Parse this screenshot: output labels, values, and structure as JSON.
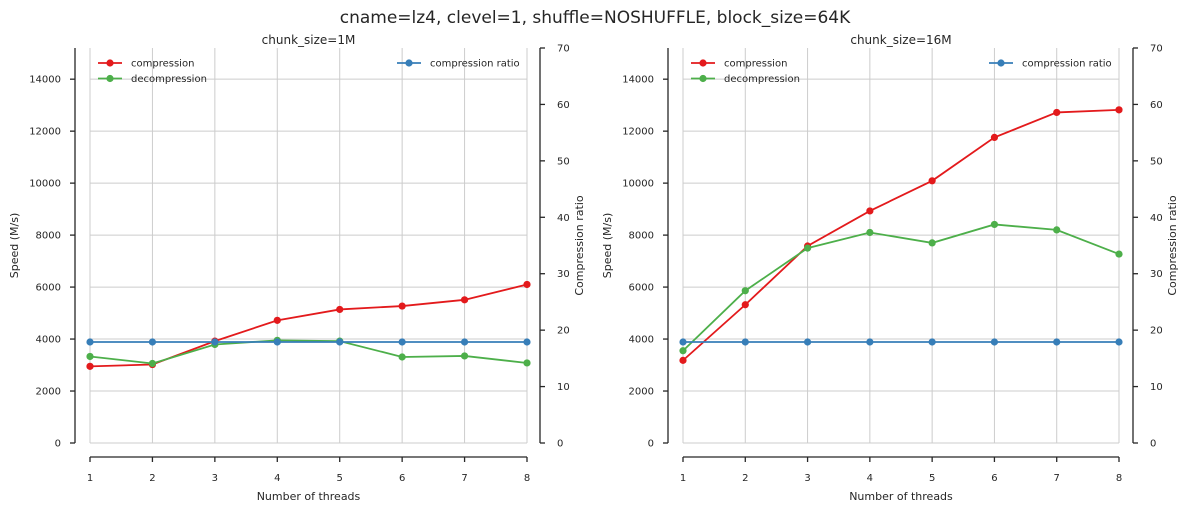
{
  "suptitle": "cname=lz4, clevel=1, shuffle=NOSHUFFLE, block_size=64K",
  "colors": {
    "compression": "#e31a1c",
    "decompression": "#4daf4a",
    "ratio": "#377eb8"
  },
  "chart_data": [
    {
      "type": "line",
      "title": "chunk_size=1M",
      "xlabel": "Number of threads",
      "ylabel": "Speed (M/s)",
      "y2label": "Compression ratio",
      "x": [
        1,
        2,
        3,
        4,
        5,
        6,
        7,
        8
      ],
      "xticks": [
        "1",
        "2",
        "3",
        "4",
        "5",
        "6",
        "7",
        "8"
      ],
      "ylim": [
        0,
        15200
      ],
      "yticks": [
        "0",
        "2000",
        "4000",
        "6000",
        "8000",
        "10000",
        "12000",
        "14000"
      ],
      "y2lim": [
        0,
        70
      ],
      "y2ticks": [
        "0",
        "10",
        "20",
        "30",
        "40",
        "50",
        "60",
        "70"
      ],
      "grid": true,
      "legend_left": "top-left",
      "legend_right": "top-right",
      "series": [
        {
          "name": "compression",
          "axis": "left",
          "color": "#e31a1c",
          "values": [
            2950,
            3020,
            3920,
            4720,
            5140,
            5270,
            5510,
            6100
          ]
        },
        {
          "name": "decompression",
          "axis": "left",
          "color": "#4daf4a",
          "values": [
            3330,
            3060,
            3790,
            3950,
            3920,
            3310,
            3350,
            3080
          ]
        },
        {
          "name": "compression ratio",
          "axis": "right",
          "color": "#377eb8",
          "values": [
            17.9,
            17.9,
            17.9,
            17.9,
            17.9,
            17.9,
            17.9,
            17.9
          ]
        }
      ]
    },
    {
      "type": "line",
      "title": "chunk_size=16M",
      "xlabel": "Number of threads",
      "ylabel": "Speed (M/s)",
      "y2label": "Compression ratio",
      "x": [
        1,
        2,
        3,
        4,
        5,
        6,
        7,
        8
      ],
      "xticks": [
        "1",
        "2",
        "3",
        "4",
        "5",
        "6",
        "7",
        "8"
      ],
      "ylim": [
        0,
        15200
      ],
      "yticks": [
        "0",
        "2000",
        "4000",
        "6000",
        "8000",
        "10000",
        "12000",
        "14000"
      ],
      "y2lim": [
        0,
        70
      ],
      "y2ticks": [
        "0",
        "10",
        "20",
        "30",
        "40",
        "50",
        "60",
        "70"
      ],
      "grid": true,
      "legend_left": "top-left",
      "legend_right": "top-right",
      "series": [
        {
          "name": "compression",
          "axis": "left",
          "color": "#e31a1c",
          "values": [
            3180,
            5320,
            7580,
            8930,
            10090,
            11760,
            12720,
            12820
          ]
        },
        {
          "name": "decompression",
          "axis": "left",
          "color": "#4daf4a",
          "values": [
            3550,
            5860,
            7500,
            8100,
            7700,
            8410,
            8200,
            7270
          ]
        },
        {
          "name": "compression ratio",
          "axis": "right",
          "color": "#377eb8",
          "values": [
            17.9,
            17.9,
            17.9,
            17.9,
            17.9,
            17.9,
            17.9,
            17.9
          ]
        }
      ]
    }
  ]
}
